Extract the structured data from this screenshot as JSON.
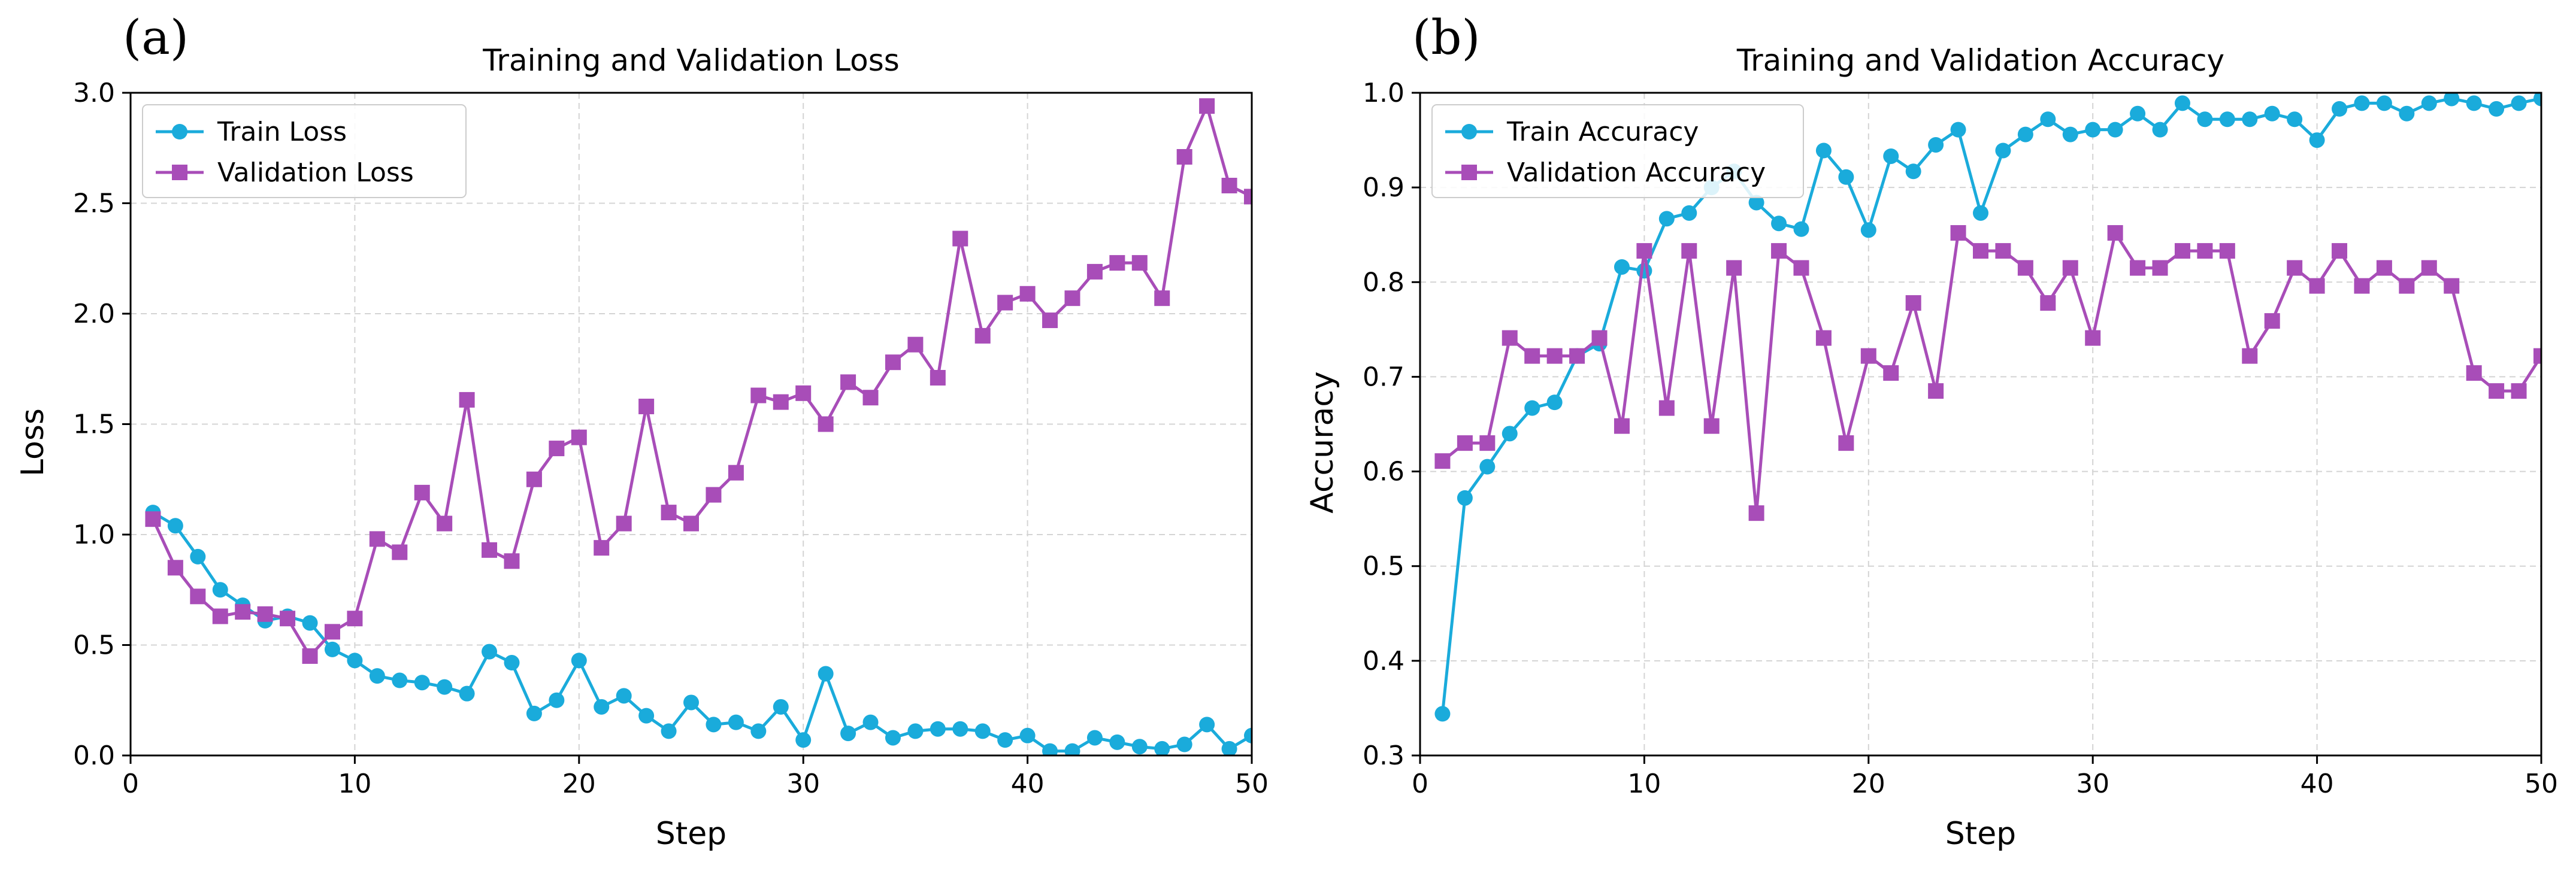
{
  "colors": {
    "train": "#1aabdb",
    "validation": "#a84db8",
    "grid": "#d4d4d4",
    "axis": "#000000"
  },
  "chart_data": [
    {
      "type": "line",
      "panel_label": "(a)",
      "title": "Training and Validation Loss",
      "xlabel": "Step",
      "ylabel": "Loss",
      "xlim": [
        0,
        50
      ],
      "ylim": [
        0,
        3.0
      ],
      "xticks": [
        0,
        10,
        20,
        30,
        40,
        50
      ],
      "xtick_labels": [
        "0",
        "10",
        "20",
        "30",
        "40",
        "50"
      ],
      "yticks": [
        0,
        0.5,
        1.0,
        1.5,
        2.0,
        2.5,
        3.0
      ],
      "ytick_labels": [
        "0.0",
        "0.5",
        "1.0",
        "1.5",
        "2.0",
        "2.5",
        "3.0"
      ],
      "grid": true,
      "legend_position": "top-left",
      "x": [
        1,
        2,
        3,
        4,
        5,
        6,
        7,
        8,
        9,
        10,
        11,
        12,
        13,
        14,
        15,
        16,
        17,
        18,
        19,
        20,
        21,
        22,
        23,
        24,
        25,
        26,
        27,
        28,
        29,
        30,
        31,
        32,
        33,
        34,
        35,
        36,
        37,
        38,
        39,
        40,
        41,
        42,
        43,
        44,
        45,
        46,
        47,
        48,
        49,
        50
      ],
      "series": [
        {
          "name": "Train Loss",
          "marker": "circle",
          "color": "#1aabdb",
          "values": [
            1.1,
            1.04,
            0.9,
            0.75,
            0.68,
            0.61,
            0.63,
            0.6,
            0.48,
            0.43,
            0.36,
            0.34,
            0.33,
            0.31,
            0.28,
            0.47,
            0.42,
            0.19,
            0.25,
            0.43,
            0.22,
            0.27,
            0.18,
            0.11,
            0.24,
            0.14,
            0.15,
            0.11,
            0.22,
            0.07,
            0.37,
            0.1,
            0.15,
            0.08,
            0.11,
            0.12,
            0.12,
            0.11,
            0.07,
            0.09,
            0.02,
            0.02,
            0.08,
            0.06,
            0.04,
            0.03,
            0.05,
            0.14,
            0.03,
            0.09
          ]
        },
        {
          "name": "Validation Loss",
          "marker": "square",
          "color": "#a84db8",
          "values": [
            1.07,
            0.85,
            0.72,
            0.63,
            0.65,
            0.64,
            0.62,
            0.45,
            0.56,
            0.62,
            0.98,
            0.92,
            1.19,
            1.05,
            1.61,
            0.93,
            0.88,
            1.25,
            1.39,
            1.44,
            0.94,
            1.05,
            1.58,
            1.1,
            1.05,
            1.18,
            1.28,
            1.63,
            1.6,
            1.64,
            1.5,
            1.69,
            1.62,
            1.78,
            1.86,
            1.71,
            2.34,
            1.9,
            2.05,
            2.09,
            1.97,
            2.07,
            2.19,
            2.23,
            2.23,
            2.07,
            2.71,
            2.94,
            2.58,
            2.53
          ]
        }
      ]
    },
    {
      "type": "line",
      "panel_label": "(b)",
      "title": "Training and Validation Accuracy",
      "xlabel": "Step",
      "ylabel": "Accuracy",
      "xlim": [
        0,
        50
      ],
      "ylim": [
        0.3,
        1.0
      ],
      "xticks": [
        0,
        10,
        20,
        30,
        40,
        50
      ],
      "xtick_labels": [
        "0",
        "10",
        "20",
        "30",
        "40",
        "50"
      ],
      "yticks": [
        0.3,
        0.4,
        0.5,
        0.6,
        0.7,
        0.8,
        0.9,
        1.0
      ],
      "ytick_labels": [
        "0.3",
        "0.4",
        "0.5",
        "0.6",
        "0.7",
        "0.8",
        "0.9",
        "1.0"
      ],
      "grid": true,
      "legend_position": "top-left",
      "x": [
        1,
        2,
        3,
        4,
        5,
        6,
        7,
        8,
        9,
        10,
        11,
        12,
        13,
        14,
        15,
        16,
        17,
        18,
        19,
        20,
        21,
        22,
        23,
        24,
        25,
        26,
        27,
        28,
        29,
        30,
        31,
        32,
        33,
        34,
        35,
        36,
        37,
        38,
        39,
        40,
        41,
        42,
        43,
        44,
        45,
        46,
        47,
        48,
        49,
        50
      ],
      "series": [
        {
          "name": "Train Accuracy",
          "marker": "circle",
          "color": "#1aabdb",
          "values": [
            0.344,
            0.572,
            0.605,
            0.64,
            0.667,
            0.673,
            0.722,
            0.735,
            0.816,
            0.812,
            0.867,
            0.873,
            0.9,
            0.917,
            0.884,
            0.862,
            0.856,
            0.939,
            0.911,
            0.855,
            0.933,
            0.917,
            0.945,
            0.961,
            0.873,
            0.939,
            0.956,
            0.972,
            0.956,
            0.961,
            0.961,
            0.978,
            0.961,
            0.989,
            0.972,
            0.972,
            0.972,
            0.978,
            0.972,
            0.95,
            0.983,
            0.989,
            0.989,
            0.978,
            0.989,
            0.994,
            0.989,
            0.983,
            0.989,
            0.994
          ]
        },
        {
          "name": "Validation Accuracy",
          "marker": "square",
          "color": "#a84db8",
          "values": [
            0.611,
            0.63,
            0.63,
            0.741,
            0.722,
            0.722,
            0.722,
            0.741,
            0.648,
            0.833,
            0.667,
            0.833,
            0.648,
            0.815,
            0.556,
            0.833,
            0.815,
            0.741,
            0.63,
            0.722,
            0.704,
            0.778,
            0.685,
            0.852,
            0.833,
            0.833,
            0.815,
            0.778,
            0.815,
            0.741,
            0.852,
            0.815,
            0.815,
            0.833,
            0.833,
            0.833,
            0.722,
            0.759,
            0.815,
            0.796,
            0.833,
            0.796,
            0.815,
            0.796,
            0.815,
            0.796,
            0.704,
            0.685,
            0.685,
            0.722
          ]
        }
      ]
    }
  ]
}
